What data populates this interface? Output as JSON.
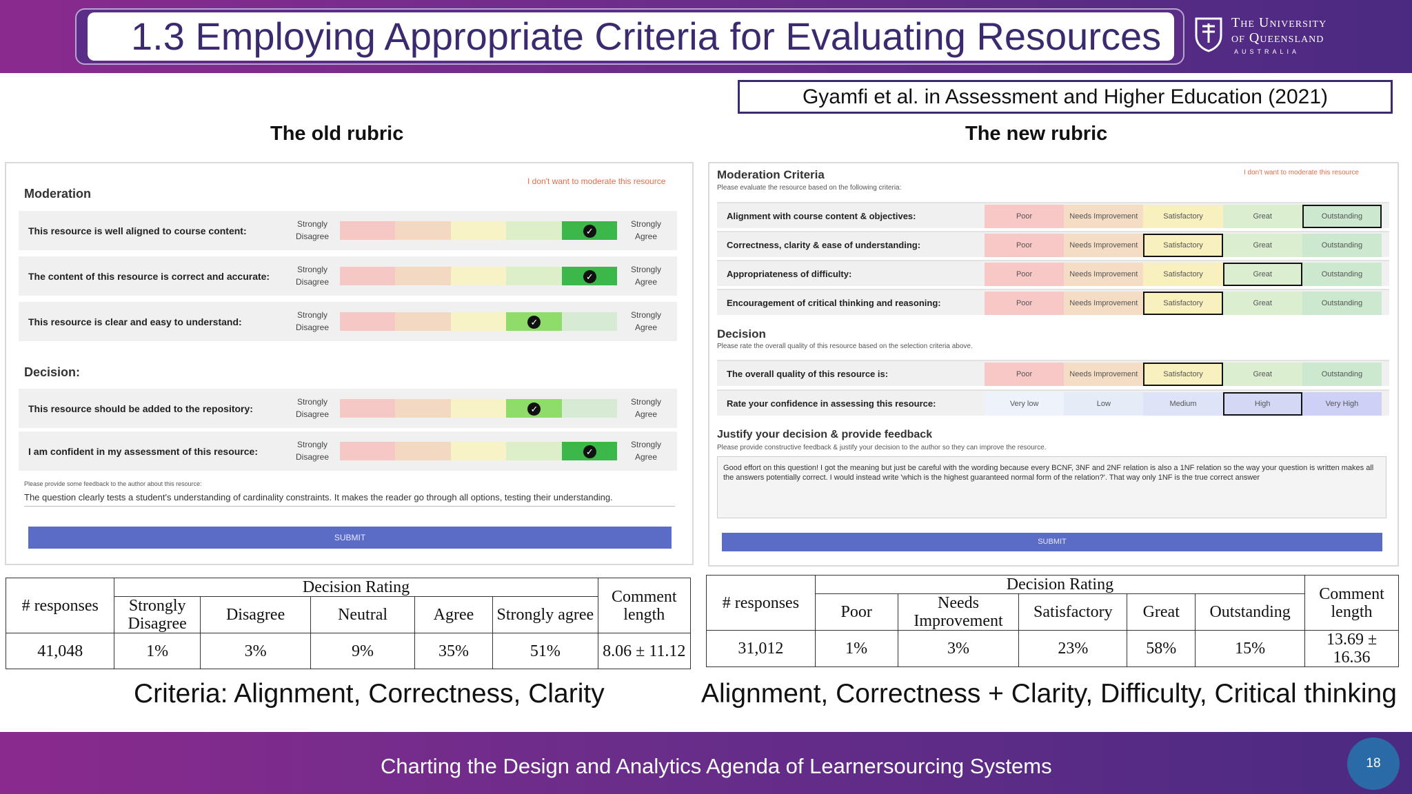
{
  "header": {
    "title": "1.3 Employing Appropriate Criteria for Evaluating Resources",
    "logo_line1": "The University",
    "logo_line2": "of Queensland",
    "logo_line3": "AUSTRALIA"
  },
  "citation": "Gyamfi et al. in Assessment and Higher Education (2021)",
  "old": {
    "title": "The old rubric",
    "moderation_label": "Moderation",
    "opt_out": "I don't want to moderate this resource",
    "left_anchor": "Strongly Disagree",
    "right_anchor": "Strongly Agree",
    "rows": [
      {
        "label": "This resource is well aligned to course content:",
        "selected": 5
      },
      {
        "label": "The content of this resource is correct and accurate:",
        "selected": 5
      },
      {
        "label": "This resource is clear and easy to understand:",
        "selected": 4
      }
    ],
    "decision_label": "Decision:",
    "decision_rows": [
      {
        "label": "This resource should be added to the repository:",
        "selected": 4
      },
      {
        "label": "I am confident in my assessment of this resource:",
        "selected": 5
      }
    ],
    "feedback_prompt": "Please provide some feedback to the author about this resource:",
    "feedback_text": "The question clearly tests a student's understanding of cardinality constraints. It makes the reader go through all options, testing their understanding.",
    "submit": "SUBMIT",
    "caption": "Criteria: Alignment, Correctness, Clarity",
    "table": {
      "h_responses": "# responses",
      "h_decision": "Decision Rating",
      "h_comment": "Comment length",
      "cols": [
        "Strongly Disagree",
        "Disagree",
        "Neutral",
        "Agree",
        "Strongly agree"
      ],
      "responses": "41,048",
      "values": [
        "1%",
        "3%",
        "9%",
        "35%",
        "51%"
      ],
      "comment": "8.06 ± 11.12"
    }
  },
  "new": {
    "title": "The new rubric",
    "criteria_label": "Moderation Criteria",
    "criteria_sub": "Please evaluate the resource based on the following criteria:",
    "opt_out": "I don't want to moderate this resource",
    "scale": [
      "Poor",
      "Needs Improvement",
      "Satisfactory",
      "Great",
      "Outstanding"
    ],
    "rows": [
      {
        "label": "Alignment with course content & objectives:",
        "selected": 5
      },
      {
        "label": "Correctness, clarity & ease of understanding:",
        "selected": 3
      },
      {
        "label": "Appropriateness of difficulty:",
        "selected": 4
      },
      {
        "label": "Encouragement of critical thinking and reasoning:",
        "selected": 3
      }
    ],
    "decision_label": "Decision",
    "decision_sub": "Please rate the overall quality of this resource based on the selection criteria above.",
    "quality_label": "The overall quality of this resource is:",
    "quality_selected": 3,
    "confidence_label": "Rate your confidence in assessing this resource:",
    "confidence_scale": [
      "Very low",
      "Low",
      "Medium",
      "High",
      "Very High"
    ],
    "confidence_selected": 4,
    "justify_label": "Justify your decision & provide feedback",
    "justify_sub": "Please provide constructive feedback & justify your decision to the author so they can improve the resource.",
    "feedback_text": "Good effort on this question! I got the meaning but just be careful with the wording because every BCNF, 3NF and 2NF relation is also a 1NF relation so the way your question is written makes all the answers potentially correct. I would instead write 'which is the highest guaranteed normal form of the relation?'. That way only 1NF is the true correct answer",
    "submit": "SUBMIT",
    "caption": "Alignment, Correctness + Clarity, Difficulty, Critical thinking",
    "table": {
      "h_responses": "# responses",
      "h_decision": "Decision Rating",
      "h_comment": "Comment length",
      "cols": [
        "Poor",
        "Needs Improvement",
        "Satisfactory",
        "Great",
        "Outstanding"
      ],
      "responses": "31,012",
      "values": [
        "1%",
        "3%",
        "23%",
        "58%",
        "15%"
      ],
      "comment": "13.69 ± 16.36"
    }
  },
  "footer": {
    "text": "Charting the Design and Analytics Agenda of Learnersourcing Systems",
    "page": "18"
  },
  "colors": {
    "header": "#6a2d8a",
    "title_text": "#3b2a6e",
    "submit": "#5b6cc7",
    "selected_green": "#3cb84a",
    "footer": "#5a2b86",
    "page_badge": "#2a6aa6"
  }
}
